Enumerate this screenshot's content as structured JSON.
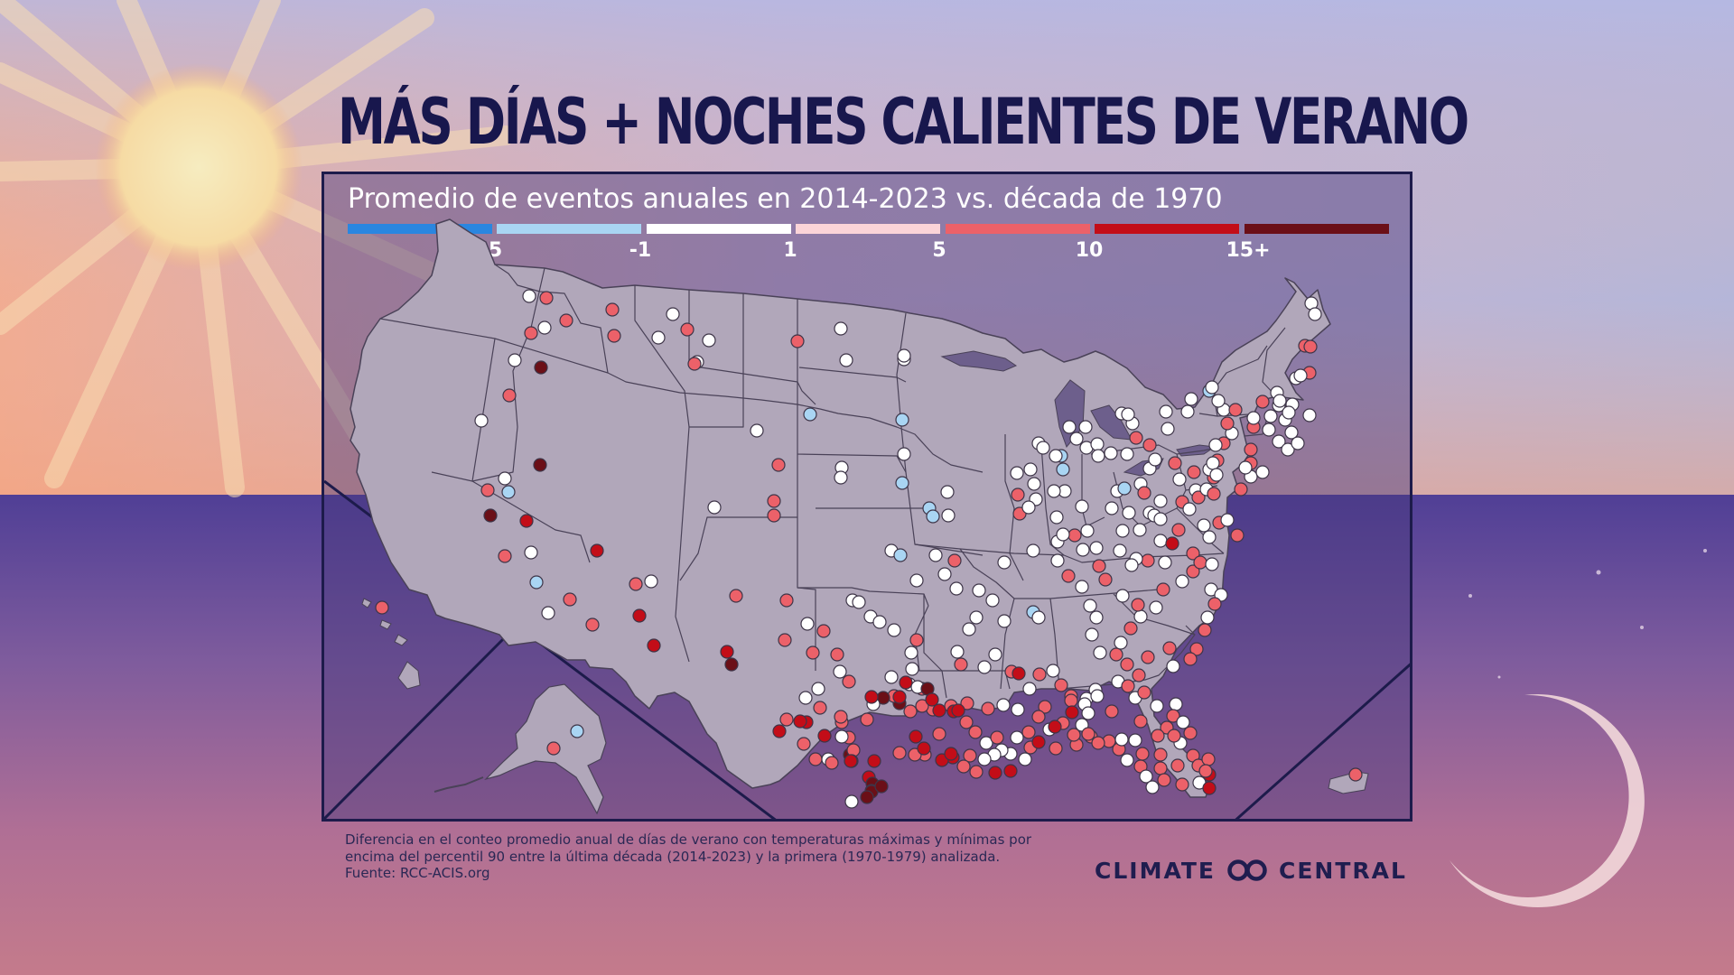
{
  "title": "MÁS DÍAS + NOCHES CALIENTES DE VERANO",
  "subtitle": "Promedio de eventos anuales en 2014-2023 vs. década de 1970",
  "legend": {
    "ticks": [
      "-5",
      "-1",
      "1",
      "5",
      "10",
      "15+"
    ],
    "bins": [
      {
        "label": "< -5",
        "color": "#2a86e0"
      },
      {
        "label": "-5 a -1",
        "color": "#a9d5f3"
      },
      {
        "label": "-1 a 1",
        "color": "#ffffff"
      },
      {
        "label": "1 a 5",
        "color": "#fbd4d8"
      },
      {
        "label": "5 a 10",
        "color": "#ec6169"
      },
      {
        "label": "10 a 15",
        "color": "#c30d18"
      },
      {
        "label": "15+",
        "color": "#6b0f17"
      }
    ]
  },
  "map": {
    "region": "Estados Unidos (continental, Alaska, Hawái, Puerto Rico)",
    "categories": {
      "a": "< -5",
      "b": "-5 a -1",
      "w": "-1 a 1",
      "p": "1 a 5",
      "m": "5 a 10",
      "r": "10 a 15",
      "d": "15+"
    }
  },
  "footnote": {
    "lines": [
      "Diferencia en el conteo promedio anual de días de verano con temperaturas máximas y mínimas por",
      "encima del percentil 90 entre la última década (2014-2023) y la primera (1970-1979) analizada.",
      "Fuente: RCC-ACIS.org"
    ]
  },
  "brand": {
    "left": "CLIMATE",
    "right": "CENTRAL"
  },
  "colors": {
    "title": "#18174d",
    "map_land": "#b1a7ba",
    "panel_border": "#1d1b4b",
    "brand": "#1f1d4f"
  }
}
